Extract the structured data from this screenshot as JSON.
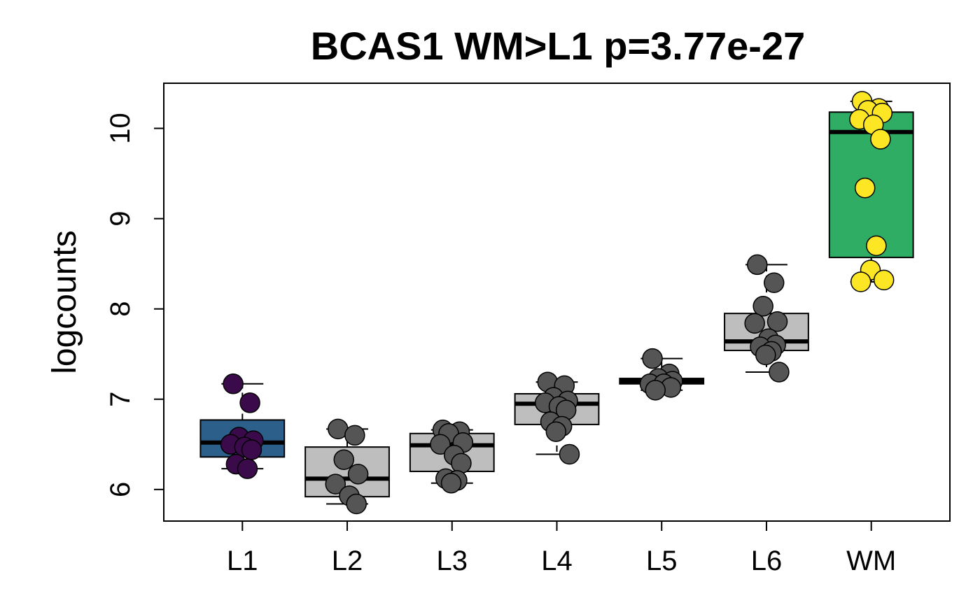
{
  "chart_data": {
    "type": "boxplot",
    "title": "BCAS1 WM>L1 p=3.77e-27",
    "xlabel": "",
    "ylabel": "logcounts",
    "ylim": [
      5.65,
      10.5
    ],
    "yticks": [
      6,
      7,
      8,
      9,
      10
    ],
    "grid": false,
    "legend": "none",
    "categories": [
      "L1",
      "L2",
      "L3",
      "L4",
      "L5",
      "L6",
      "WM"
    ],
    "groups": [
      {
        "name": "L1",
        "fill": "#2c5f8a",
        "point_color": "#3b0a4a",
        "box": {
          "whisker_low": 6.23,
          "q1": 6.36,
          "median": 6.52,
          "q3": 6.77,
          "whisker_high": 7.17
        },
        "points": [
          7.17,
          6.96,
          6.58,
          6.54,
          6.5,
          6.47,
          6.44,
          6.28,
          6.23
        ]
      },
      {
        "name": "L2",
        "fill": "#bebebe",
        "point_color": "#555555",
        "box": {
          "whisker_low": 5.84,
          "q1": 5.92,
          "median": 6.12,
          "q3": 6.47,
          "whisker_high": 6.67
        },
        "points": [
          6.67,
          6.6,
          6.33,
          6.17,
          6.06,
          5.93,
          5.84
        ]
      },
      {
        "name": "L3",
        "fill": "#bebebe",
        "point_color": "#555555",
        "box": {
          "whisker_low": 6.07,
          "q1": 6.2,
          "median": 6.49,
          "q3": 6.62,
          "whisker_high": 6.66
        },
        "points": [
          6.66,
          6.64,
          6.62,
          6.52,
          6.5,
          6.38,
          6.29,
          6.12,
          6.1,
          6.07
        ]
      },
      {
        "name": "L4",
        "fill": "#bebebe",
        "point_color": "#555555",
        "box": {
          "whisker_low": 6.39,
          "q1": 6.72,
          "median": 6.95,
          "q3": 7.06,
          "whisker_high": 7.19
        },
        "points": [
          7.19,
          7.15,
          7.02,
          6.98,
          6.96,
          6.92,
          6.88,
          6.75,
          6.7,
          6.64,
          6.39
        ]
      },
      {
        "name": "L5",
        "fill": "#bebebe",
        "point_color": "#555555",
        "box": {
          "whisker_low": 7.1,
          "q1": 7.17,
          "median": 7.2,
          "q3": 7.23,
          "whisker_high": 7.45
        },
        "points": [
          7.45,
          7.28,
          7.23,
          7.2,
          7.17,
          7.17,
          7.13,
          7.1
        ]
      },
      {
        "name": "L6",
        "fill": "#bebebe",
        "point_color": "#555555",
        "box": {
          "whisker_low": 7.3,
          "q1": 7.54,
          "median": 7.64,
          "q3": 7.95,
          "whisker_high": 8.49
        },
        "points": [
          8.49,
          8.29,
          8.03,
          7.86,
          7.84,
          7.67,
          7.6,
          7.58,
          7.53,
          7.49,
          7.3
        ]
      },
      {
        "name": "WM",
        "fill": "#2fad64",
        "point_color": "#fde725",
        "box": {
          "whisker_low": 8.3,
          "q1": 8.57,
          "median": 9.96,
          "q3": 10.18,
          "whisker_high": 10.3
        },
        "points": [
          10.3,
          10.22,
          10.2,
          10.17,
          10.1,
          10.04,
          9.88,
          9.34,
          8.7,
          8.43,
          8.32,
          8.3
        ]
      }
    ]
  }
}
